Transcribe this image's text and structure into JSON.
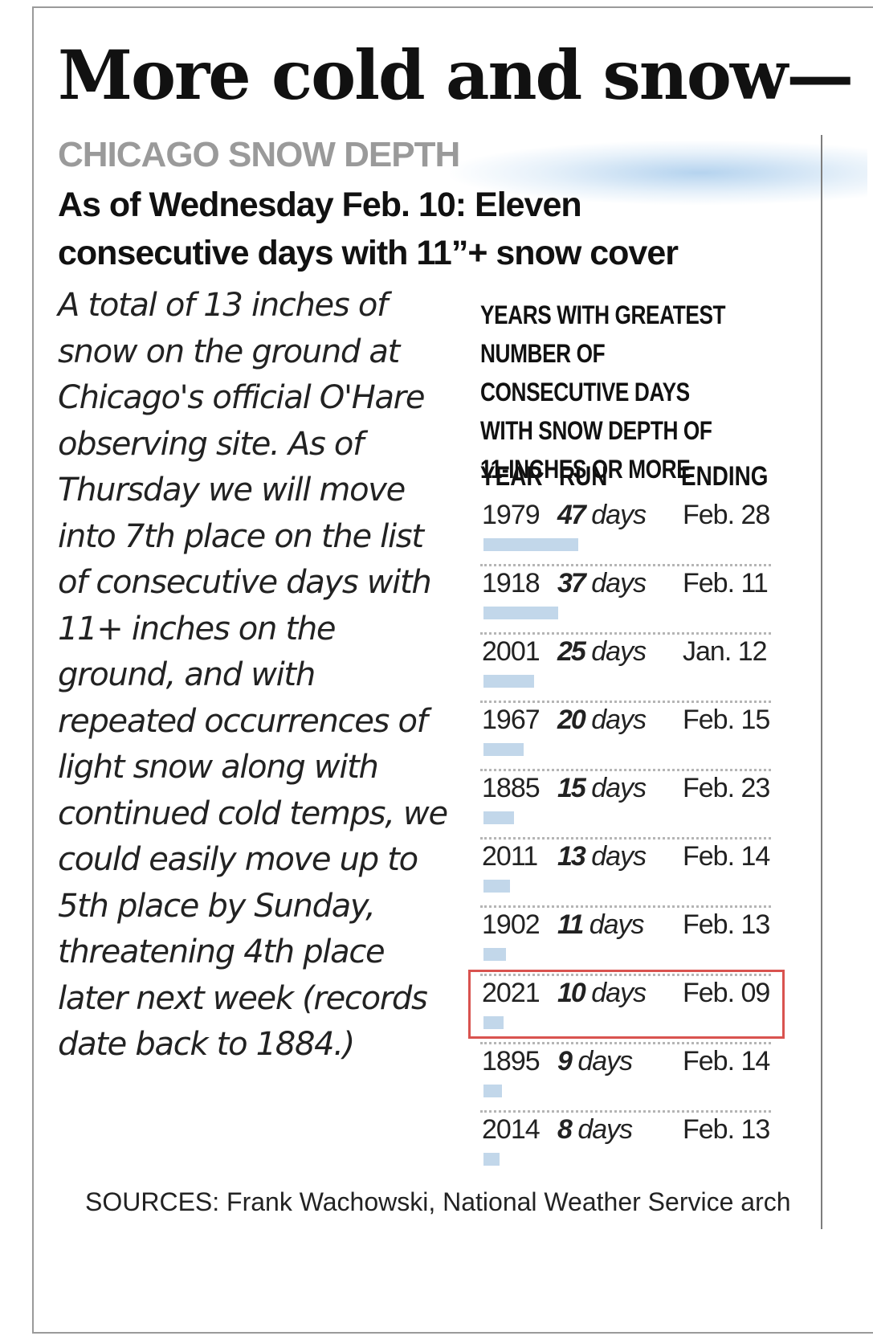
{
  "headline": "More cold and snow—",
  "kicker": "CHICAGO SNOW DEPTH",
  "subhead": "As of Wednesday Feb. 10: Eleven consecutive days with 11”+ snow cover",
  "body": "A total of 13 inches of snow on the ground at Chicago's official O'Hare observing site. As of Thursday we will move into 7th place on the list of consecutive days with 11+ inches on the ground, and with repeated occurrences of light snow along with continued cold temps, we could easily move up to 5th place by Sunday, threatening 4th place later next week (records date back to 1884.)",
  "sources": "SOURCES: Frank Wachowski, National Weather Service arch",
  "chart_data": {
    "type": "table",
    "title": "YEARS WITH GREATEST NUMBER OF CONSECUTIVE DAYS WITH SNOW DEPTH OF 11-INCHES OR MORE",
    "columns": [
      "YEAR",
      "RUN",
      "ENDING"
    ],
    "unit": "days",
    "rows": [
      {
        "year": "1979",
        "run": 47,
        "ending": "Feb. 28"
      },
      {
        "year": "1918",
        "run": 37,
        "ending": "Feb. 11"
      },
      {
        "year": "2001",
        "run": 25,
        "ending": "Jan. 12"
      },
      {
        "year": "1967",
        "run": 20,
        "ending": "Feb. 15"
      },
      {
        "year": "1885",
        "run": 15,
        "ending": "Feb. 23"
      },
      {
        "year": "2011",
        "run": 13,
        "ending": "Feb. 14"
      },
      {
        "year": "1902",
        "run": 11,
        "ending": "Feb. 13"
      },
      {
        "year": "2021",
        "run": 10,
        "ending": "Feb. 09",
        "highlighted": true
      },
      {
        "year": "1895",
        "run": 9,
        "ending": "Feb. 14"
      },
      {
        "year": "2014",
        "run": 8,
        "ending": "Feb. 13"
      }
    ],
    "bar_color": "#c2d7ea",
    "highlight_color": "#d9534f"
  }
}
